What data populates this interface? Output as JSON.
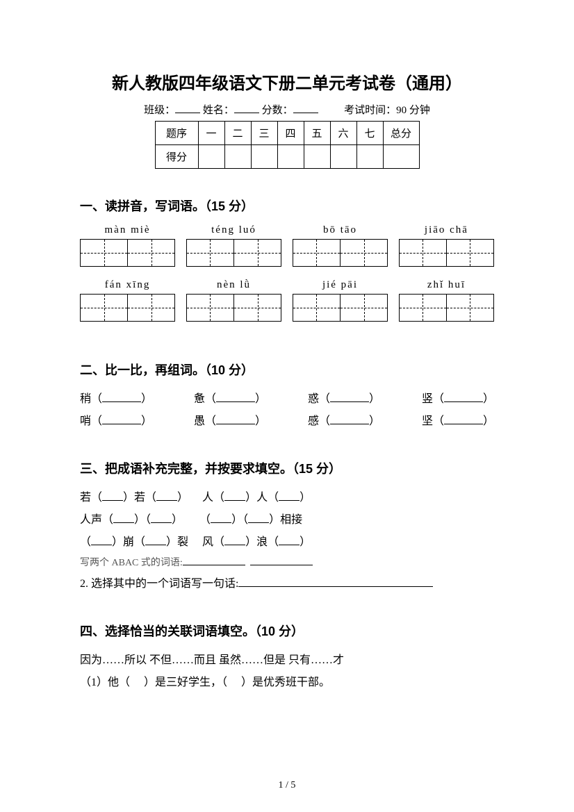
{
  "title": "新人教版四年级语文下册二单元考试卷（通用）",
  "meta": {
    "class_label": "班级：",
    "name_label": "姓名：",
    "score_label": "分数：",
    "exam_time_label": "考试时间：90 分钟"
  },
  "score_table": {
    "header": "题序",
    "score_row": "得分",
    "cols": [
      "一",
      "二",
      "三",
      "四",
      "五",
      "六",
      "七",
      "总分"
    ]
  },
  "section1": {
    "head": "一、读拼音，写词语。（15 分）",
    "items": [
      "màn  miè",
      "téng  luó",
      "bō  tāo",
      "jiāo  chā",
      "fán  xīng",
      "nèn  lǜ",
      "jié  pāi",
      "zhǐ  huī"
    ]
  },
  "section2": {
    "head": "二、比一比，再组词。（10 分）",
    "row1": [
      "稍",
      "惫",
      "惑",
      "竖"
    ],
    "row2": [
      "哨",
      "愚",
      "感",
      "坚"
    ]
  },
  "section3": {
    "head": "三、把成语补充完整，并按要求填空。（15 分）",
    "l1a": "若（",
    "l1b": "）若（",
    "l1c": "）",
    "l1d": "人（",
    "l1e": "）人（",
    "l1f": "）",
    "l2a": "人声（",
    "l2b": "）（",
    "l2c": "）",
    "l2d": "（",
    "l2e": "）（",
    "l2f": "）相接",
    "l3a": "（",
    "l3b": "）崩（",
    "l3c": "）裂",
    "l3d": "风（",
    "l3e": "）浪（",
    "l3f": "）",
    "note": "写两个 ABAC 式的词语:",
    "q2": "2. 选择其中的一个词语写一句话:"
  },
  "section4": {
    "head": "四、选择恰当的关联词语填空。（10 分）",
    "options": "因为……所以    不但……而且    虽然……但是    只有……才",
    "q1a": "（1）他（",
    "q1b": "）是三好学生，（",
    "q1c": "）是优秀班干部。"
  },
  "page_num": "1 / 5"
}
